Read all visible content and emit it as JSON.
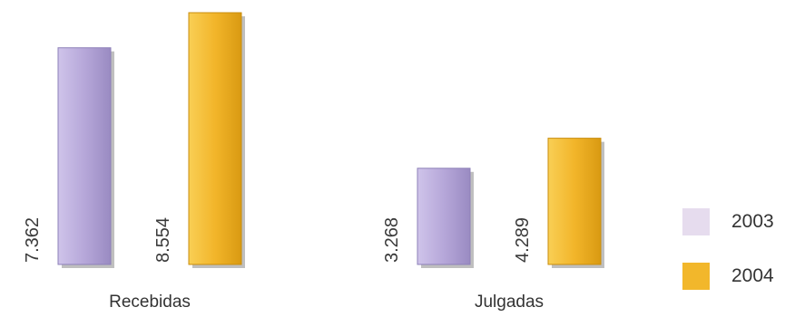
{
  "chart_data": {
    "type": "bar",
    "categories": [
      "Recebidas",
      "Julgadas"
    ],
    "series": [
      {
        "name": "2003",
        "values": [
          7362,
          3268
        ],
        "labels": [
          "7.362",
          "3.268"
        ],
        "color": "#b7a8d8"
      },
      {
        "name": "2004",
        "values": [
          8554,
          4289
        ],
        "labels": [
          "8.554",
          "4.289"
        ],
        "color": "#f2b72b"
      }
    ],
    "ylim": [
      0,
      9000
    ],
    "grid": false,
    "legend_position": "right",
    "title": "",
    "xlabel": "",
    "ylabel": ""
  }
}
